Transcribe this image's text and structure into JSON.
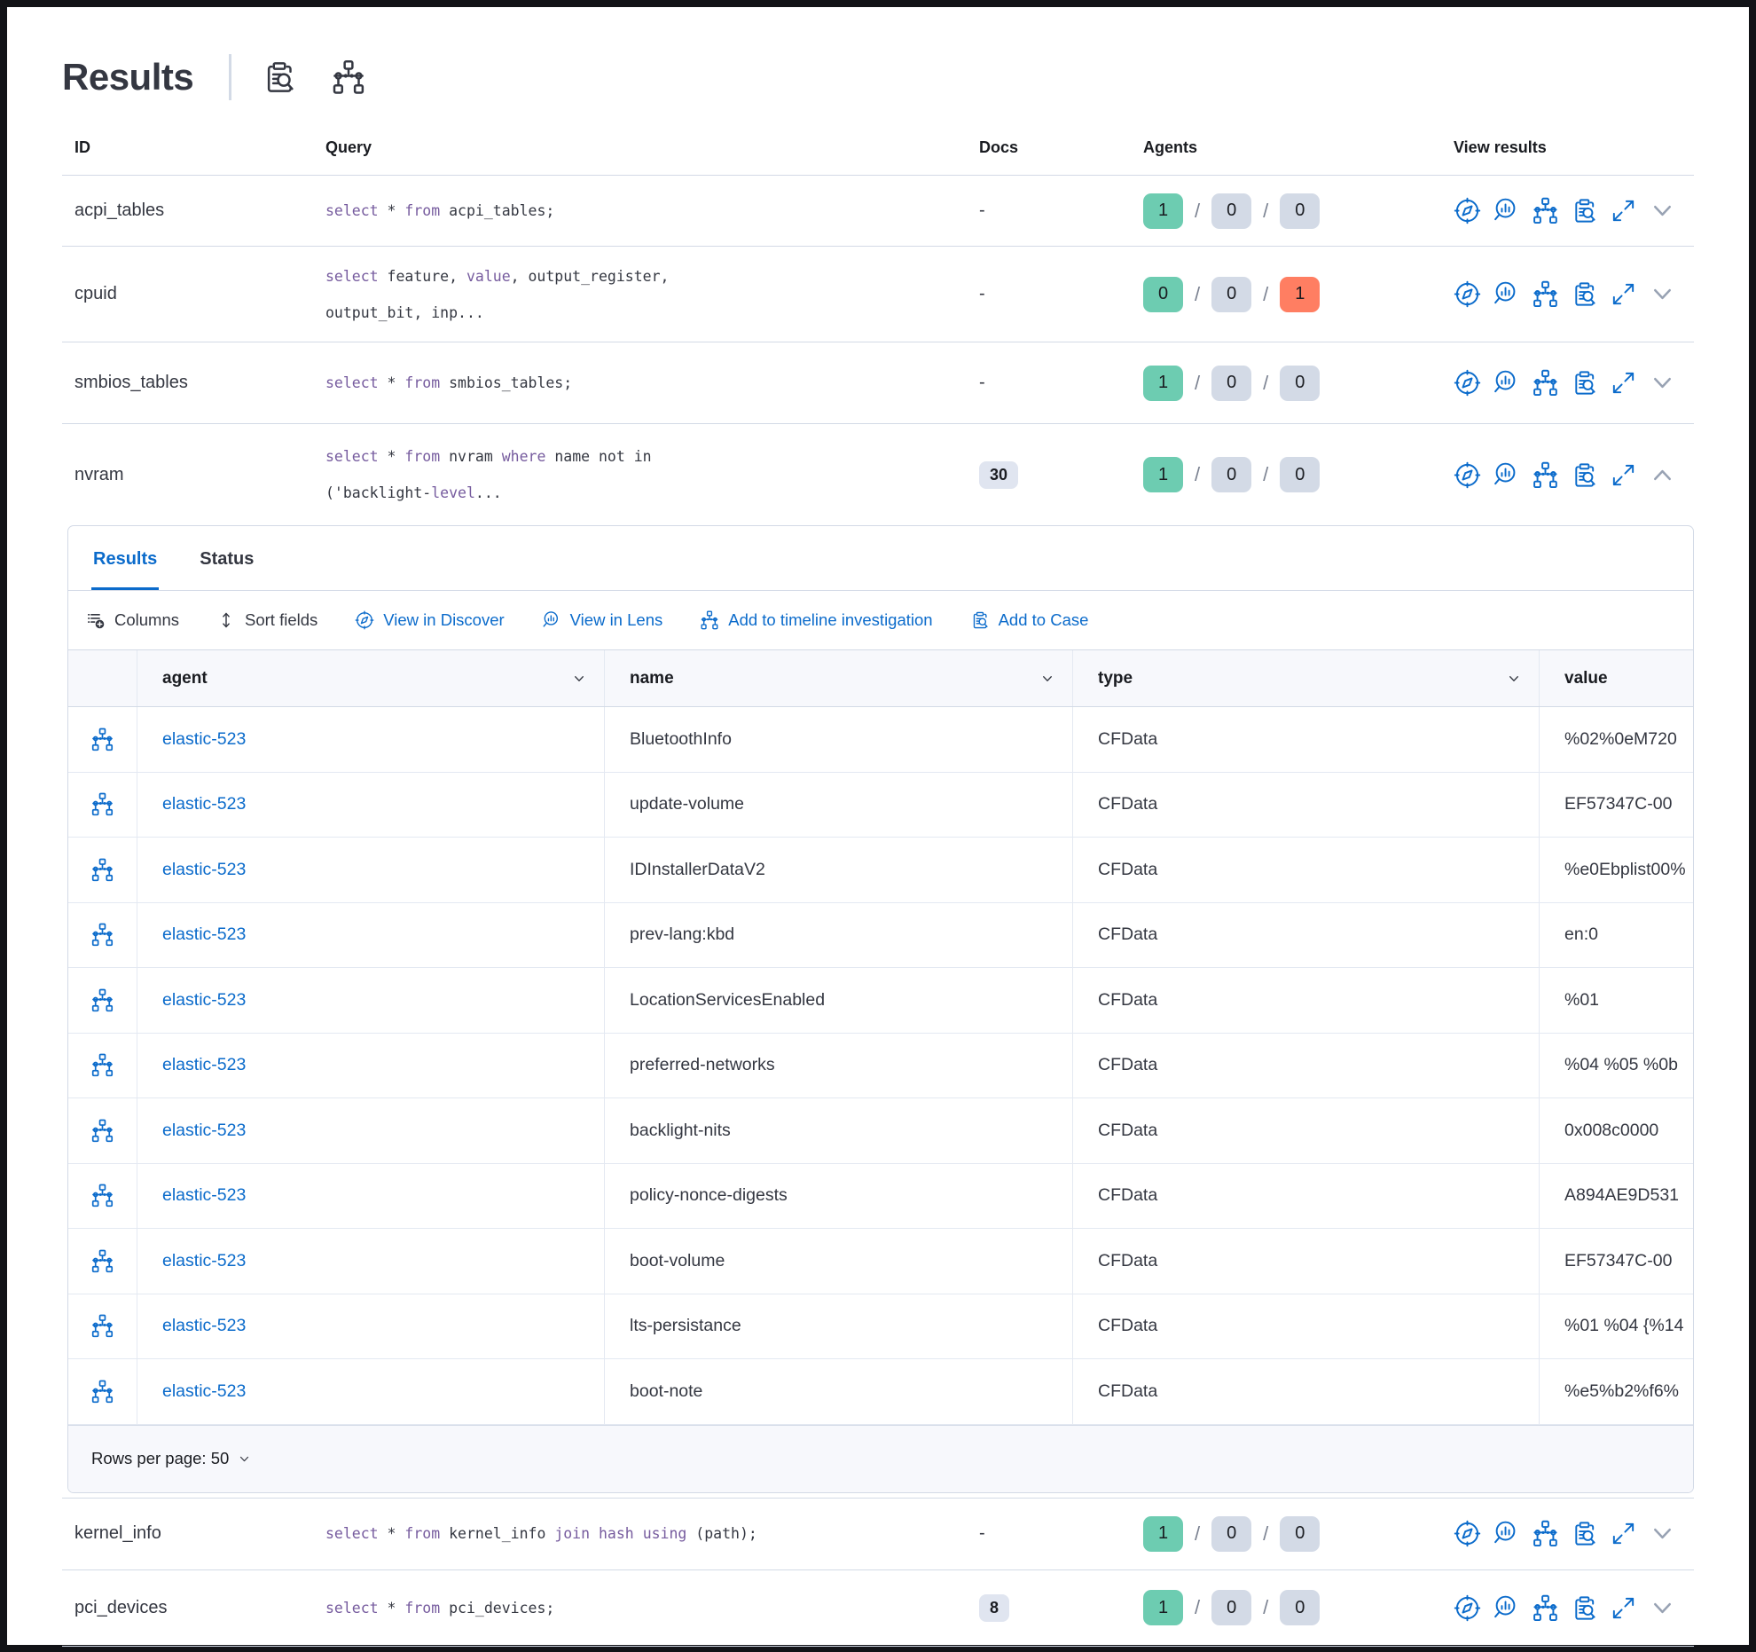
{
  "colors": {
    "accent": "#0b6bcb",
    "kw": "#765b9e",
    "text": "#343741",
    "border": "#d3dae6",
    "borderlight": "#e4e9f2",
    "bgsub": "#f7f8fc",
    "badgeGreen": "#6dccb1",
    "badgeGray": "#d3dae6",
    "badgeRed": "#ff7e62",
    "docsBadge": "#e0e5f0",
    "chevron": "#98a2b3"
  },
  "header": {
    "title": "Results"
  },
  "table": {
    "slash": "/",
    "columns": {
      "id": "ID",
      "query": "Query",
      "docs": "Docs",
      "agents": "Agents",
      "view": "View results"
    },
    "rows": [
      {
        "id": "acpi_tables",
        "docs": "-",
        "q": [
          {
            "t": "select",
            "k": 1
          },
          {
            "t": " * "
          },
          {
            "t": "from",
            "k": 1
          },
          {
            "t": " acpi_tables;"
          }
        ],
        "agents": [
          "1",
          "0",
          "0"
        ]
      },
      {
        "id": "cpuid",
        "docs": "-",
        "q": [
          {
            "t": "select",
            "k": 1
          },
          {
            "t": " feature, "
          },
          {
            "t": "value",
            "k": 1
          },
          {
            "t": ", output_register,"
          },
          {
            "br": 1
          },
          {
            "t": "output_bit, inp..."
          }
        ],
        "agents": [
          "0",
          "0",
          "1"
        ]
      },
      {
        "id": "smbios_tables",
        "docs": "-",
        "q": [
          {
            "t": "select",
            "k": 1
          },
          {
            "t": " * "
          },
          {
            "t": "from",
            "k": 1
          },
          {
            "t": " smbios_tables;"
          }
        ],
        "agents": [
          "1",
          "0",
          "0"
        ]
      },
      {
        "id": "nvram",
        "docs": "30",
        "q": [
          {
            "t": "select",
            "k": 1
          },
          {
            "t": " * "
          },
          {
            "t": "from",
            "k": 1
          },
          {
            "t": " nvram "
          },
          {
            "t": "where",
            "k": 1
          },
          {
            "t": " name not in"
          },
          {
            "br": 1
          },
          {
            "t": "('backlight-"
          },
          {
            "t": "level",
            "k": 1
          },
          {
            "t": "..."
          }
        ],
        "agents": [
          "1",
          "0",
          "0"
        ]
      },
      {
        "id": "kernel_info",
        "docs": "-",
        "q": [
          {
            "t": "select",
            "k": 1
          },
          {
            "t": " * "
          },
          {
            "t": "from",
            "k": 1
          },
          {
            "t": " kernel_info "
          },
          {
            "t": "join",
            "k": 1
          },
          {
            "t": " "
          },
          {
            "t": "hash",
            "k": 1
          },
          {
            "t": " "
          },
          {
            "t": "using",
            "k": 1
          },
          {
            "t": " (path);"
          }
        ],
        "agents": [
          "1",
          "0",
          "0"
        ]
      },
      {
        "id": "pci_devices",
        "docs": "8",
        "q": [
          {
            "t": "select",
            "k": 1
          },
          {
            "t": " * "
          },
          {
            "t": "from",
            "k": 1
          },
          {
            "t": " pci_devices;"
          }
        ],
        "agents": [
          "1",
          "0",
          "0"
        ]
      }
    ]
  },
  "panel": {
    "tabs": {
      "results": "Results",
      "status": "Status"
    },
    "toolbar": {
      "columns": "Columns",
      "sort": "Sort fields",
      "discover": "View in Discover",
      "lens": "View in Lens",
      "timeline": "Add to timeline investigation",
      "case": "Add to Case"
    },
    "grid": {
      "columns": {
        "agent": "agent",
        "name": "name",
        "type": "type",
        "value": "value"
      },
      "rows": [
        {
          "agent": "elastic-523",
          "name": "BluetoothInfo",
          "type": "CFData",
          "value": "%02%0eM720"
        },
        {
          "agent": "elastic-523",
          "name": "update-volume",
          "type": "CFData",
          "value": "EF57347C-00"
        },
        {
          "agent": "elastic-523",
          "name": "IDInstallerDataV2",
          "type": "CFData",
          "value": "%e0Ebplist00%"
        },
        {
          "agent": "elastic-523",
          "name": "prev-lang:kbd",
          "type": "CFData",
          "value": "en:0"
        },
        {
          "agent": "elastic-523",
          "name": "LocationServicesEnabled",
          "type": "CFData",
          "value": "%01"
        },
        {
          "agent": "elastic-523",
          "name": "preferred-networks",
          "type": "CFData",
          "value": "%04 %05 %0b"
        },
        {
          "agent": "elastic-523",
          "name": "backlight-nits",
          "type": "CFData",
          "value": "0x008c0000"
        },
        {
          "agent": "elastic-523",
          "name": "policy-nonce-digests",
          "type": "CFData",
          "value": "A894AE9D531"
        },
        {
          "agent": "elastic-523",
          "name": "boot-volume",
          "type": "CFData",
          "value": "EF57347C-00"
        },
        {
          "agent": "elastic-523",
          "name": "lts-persistance",
          "type": "CFData",
          "value": "%01 %04 {%14"
        },
        {
          "agent": "elastic-523",
          "name": "boot-note",
          "type": "CFData",
          "value": "%e5%b2%f6%"
        }
      ]
    },
    "footer": {
      "rows_per_page": "Rows per page: 50"
    }
  }
}
